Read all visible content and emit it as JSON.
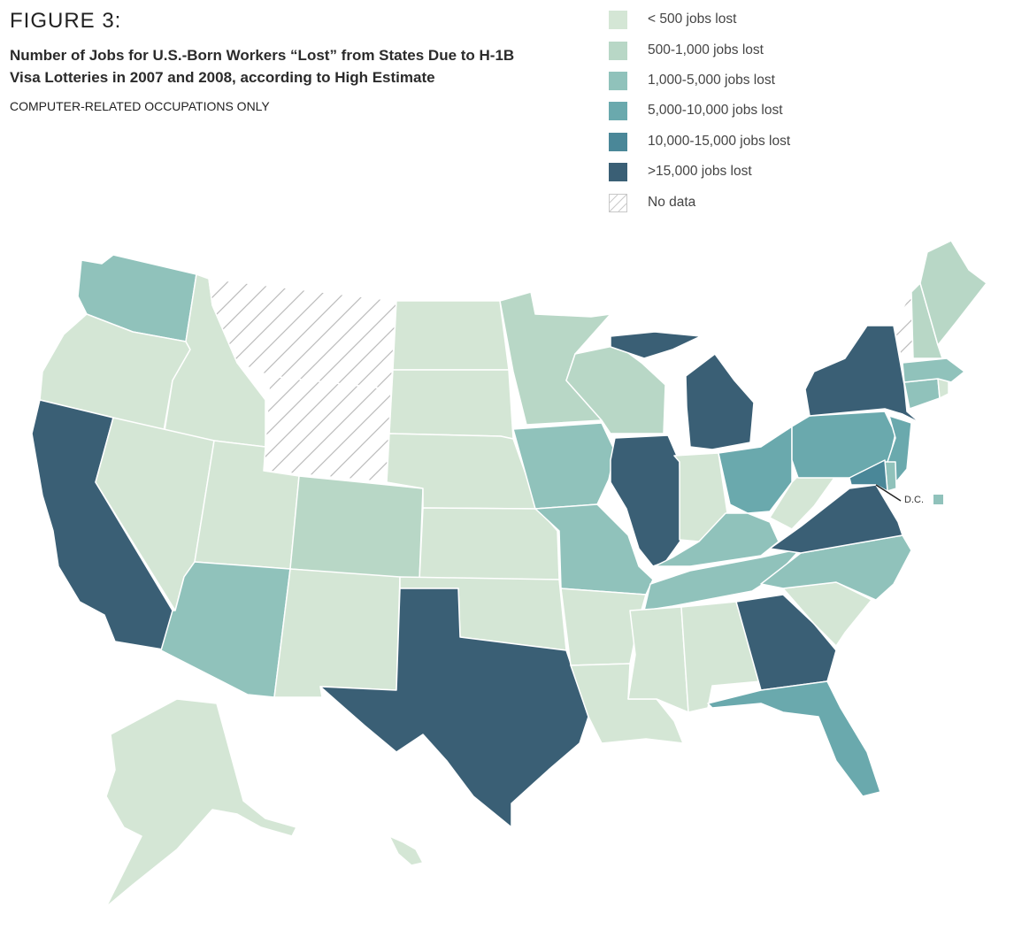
{
  "header": {
    "figure_label": "FIGURE 3:",
    "title": "Number of Jobs for U.S.-Born Workers “Lost” from States Due to H-1B Visa Lotteries in 2007 and 2008, according to High Estimate",
    "subtitle": "COMPUTER-RELATED OCCUPATIONS ONLY"
  },
  "legend": [
    {
      "label": "< 500 jobs lost",
      "color": "#d4e6d5"
    },
    {
      "label": "500-1,000 jobs lost",
      "color": "#b8d7c6"
    },
    {
      "label": "1,000-5,000 jobs lost",
      "color": "#90c2bb"
    },
    {
      "label": "5,000-10,000 jobs lost",
      "color": "#6aa9ad"
    },
    {
      "label": "10,000-15,000 jobs lost",
      "color": "#4a8798"
    },
    {
      "label": ">15,000 jobs lost",
      "color": "#3a5f75"
    },
    {
      "label": "No data",
      "color": "hatched"
    }
  ],
  "dc": {
    "label": "D.C.",
    "category": "1,000-5,000 jobs lost"
  },
  "states": {
    "WA": "1,000-5,000 jobs lost",
    "OR": "< 500 jobs lost",
    "CA": ">15,000 jobs lost",
    "ID": "< 500 jobs lost",
    "NV": "< 500 jobs lost",
    "MT": "No data",
    "WY": "No data",
    "UT": "< 500 jobs lost",
    "AZ": "1,000-5,000 jobs lost",
    "CO": "500-1,000 jobs lost",
    "NM": "< 500 jobs lost",
    "ND": "< 500 jobs lost",
    "SD": "< 500 jobs lost",
    "NE": "< 500 jobs lost",
    "KS": "< 500 jobs lost",
    "OK": "< 500 jobs lost",
    "TX": ">15,000 jobs lost",
    "MN": "500-1,000 jobs lost",
    "IA": "1,000-5,000 jobs lost",
    "MO": "1,000-5,000 jobs lost",
    "AR": "< 500 jobs lost",
    "LA": "< 500 jobs lost",
    "WI": "500-1,000 jobs lost",
    "IL": ">15,000 jobs lost",
    "MI": ">15,000 jobs lost",
    "IN": "< 500 jobs lost",
    "OH": "5,000-10,000 jobs lost",
    "KY": "1,000-5,000 jobs lost",
    "TN": "1,000-5,000 jobs lost",
    "MS": "< 500 jobs lost",
    "AL": "< 500 jobs lost",
    "GA": ">15,000 jobs lost",
    "FL": "5,000-10,000 jobs lost",
    "SC": "< 500 jobs lost",
    "NC": "1,000-5,000 jobs lost",
    "VA": ">15,000 jobs lost",
    "WV": "< 500 jobs lost",
    "PA": "5,000-10,000 jobs lost",
    "NY": ">15,000 jobs lost",
    "NJ": "5,000-10,000 jobs lost",
    "DE": "1,000-5,000 jobs lost",
    "MD": "10,000-15,000 jobs lost",
    "CT": "1,000-5,000 jobs lost",
    "RI": "< 500 jobs lost",
    "MA": "1,000-5,000 jobs lost",
    "VT": "No data",
    "NH": "500-1,000 jobs lost",
    "ME": "500-1,000 jobs lost",
    "AK": "< 500 jobs lost",
    "HI": "< 500 jobs lost"
  }
}
